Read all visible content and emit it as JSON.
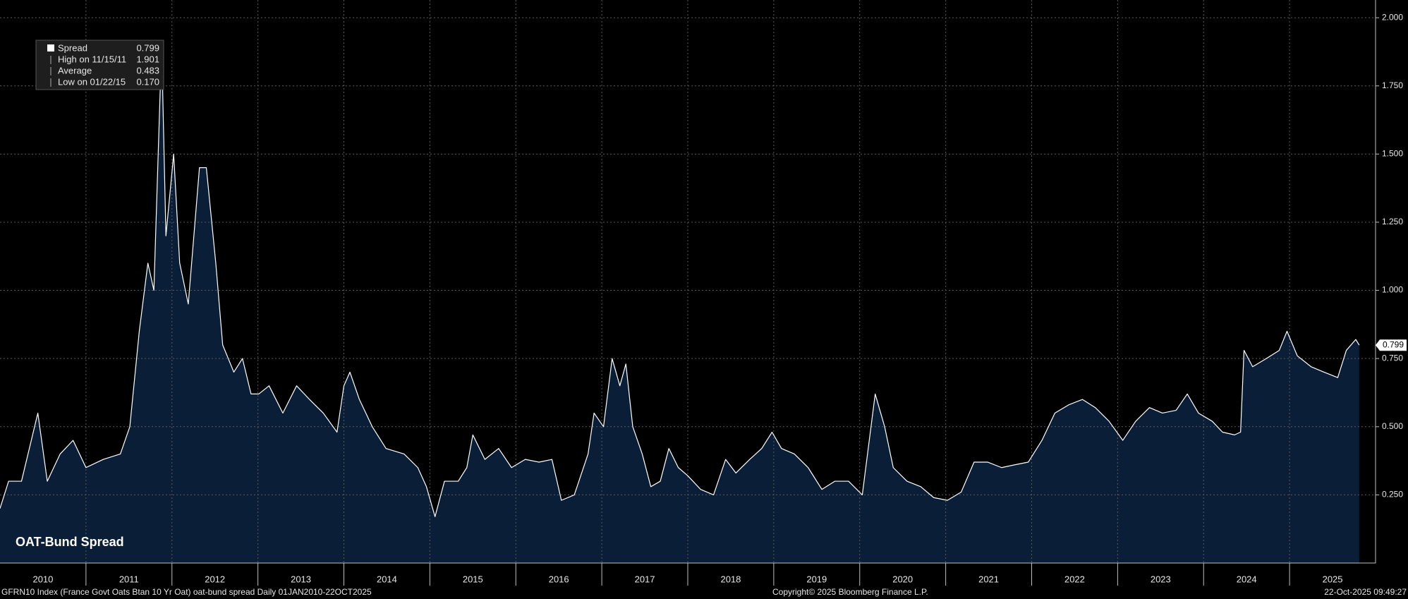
{
  "chart_data": {
    "type": "area",
    "title": "OAT-Bund Spread",
    "x": [
      2010.0,
      2010.1,
      2010.25,
      2010.44,
      2010.55,
      2010.7,
      2010.85,
      2011.0,
      2011.2,
      2011.4,
      2011.51,
      2011.62,
      2011.72,
      2011.79,
      2011.88,
      2011.93,
      2012.02,
      2012.09,
      2012.19,
      2012.32,
      2012.4,
      2012.51,
      2012.59,
      2012.72,
      2012.82,
      2012.92,
      2013.01,
      2013.13,
      2013.29,
      2013.45,
      2013.6,
      2013.76,
      2013.92,
      2014.0,
      2014.07,
      2014.18,
      2014.33,
      2014.49,
      2014.7,
      2014.86,
      2014.96,
      2015.06,
      2015.17,
      2015.33,
      2015.43,
      2015.5,
      2015.64,
      2015.8,
      2015.95,
      2016.11,
      2016.27,
      2016.42,
      2016.53,
      2016.68,
      2016.84,
      2016.91,
      2017.02,
      2017.12,
      2017.21,
      2017.28,
      2017.36,
      2017.47,
      2017.57,
      2017.68,
      2017.78,
      2017.89,
      2018.0,
      2018.15,
      2018.3,
      2018.44,
      2018.56,
      2018.72,
      2018.86,
      2018.98,
      2019.09,
      2019.24,
      2019.4,
      2019.56,
      2019.71,
      2019.87,
      2020.03,
      2020.18,
      2020.29,
      2020.39,
      2020.55,
      2020.71,
      2020.86,
      2021.02,
      2021.18,
      2021.33,
      2021.49,
      2021.65,
      2021.8,
      2021.96,
      2022.12,
      2022.27,
      2022.43,
      2022.59,
      2022.74,
      2022.9,
      2023.06,
      2023.21,
      2023.37,
      2023.52,
      2023.68,
      2023.81,
      2023.94,
      2024.1,
      2024.22,
      2024.36,
      2024.43,
      2024.47,
      2024.57,
      2024.73,
      2024.88,
      2024.97,
      2025.09,
      2025.25,
      2025.4,
      2025.56,
      2025.66,
      2025.77,
      2025.81
    ],
    "series": [
      {
        "name": "Spread",
        "color": "#ffffff",
        "fill": "#0a1e38",
        "values": [
          0.2,
          0.3,
          0.3,
          0.55,
          0.3,
          0.4,
          0.45,
          0.35,
          0.38,
          0.4,
          0.5,
          0.85,
          1.1,
          1.0,
          1.901,
          1.2,
          1.5,
          1.1,
          0.95,
          1.45,
          1.45,
          1.1,
          0.8,
          0.7,
          0.75,
          0.62,
          0.62,
          0.65,
          0.55,
          0.65,
          0.6,
          0.55,
          0.48,
          0.65,
          0.7,
          0.6,
          0.5,
          0.42,
          0.4,
          0.35,
          0.28,
          0.17,
          0.3,
          0.3,
          0.35,
          0.47,
          0.38,
          0.42,
          0.35,
          0.38,
          0.37,
          0.38,
          0.23,
          0.25,
          0.4,
          0.55,
          0.5,
          0.75,
          0.65,
          0.73,
          0.5,
          0.4,
          0.28,
          0.3,
          0.42,
          0.35,
          0.32,
          0.27,
          0.25,
          0.38,
          0.33,
          0.38,
          0.42,
          0.48,
          0.42,
          0.4,
          0.35,
          0.27,
          0.3,
          0.3,
          0.25,
          0.62,
          0.5,
          0.35,
          0.3,
          0.28,
          0.24,
          0.23,
          0.26,
          0.37,
          0.37,
          0.35,
          0.36,
          0.37,
          0.45,
          0.55,
          0.58,
          0.6,
          0.57,
          0.52,
          0.45,
          0.52,
          0.57,
          0.55,
          0.56,
          0.62,
          0.55,
          0.52,
          0.48,
          0.47,
          0.48,
          0.78,
          0.72,
          0.75,
          0.78,
          0.85,
          0.76,
          0.72,
          0.7,
          0.68,
          0.78,
          0.82,
          0.799
        ]
      }
    ],
    "xlim": [
      2010,
      2026
    ],
    "xticks": [
      2010,
      2011,
      2012,
      2013,
      2014,
      2015,
      2016,
      2017,
      2018,
      2019,
      2020,
      2021,
      2022,
      2023,
      2024,
      2025
    ],
    "ylim": [
      0,
      2.065
    ],
    "yticks": [
      {
        "value": 0.25,
        "label": "0.250"
      },
      {
        "value": 0.5,
        "label": "0.500"
      },
      {
        "value": 0.75,
        "label": "0.750"
      },
      {
        "value": 1,
        "label": "1.000"
      },
      {
        "value": 1.25,
        "label": "1.250"
      },
      {
        "value": 1.5,
        "label": "1.500"
      },
      {
        "value": 1.75,
        "label": "1.750"
      },
      {
        "value": 2,
        "label": "2.000"
      }
    ],
    "grid": true,
    "legend_stats": [
      {
        "name": "High on 11/15/11",
        "value": 1.901
      },
      {
        "name": "Average",
        "value": 0.483
      },
      {
        "name": "Low on 01/22/15",
        "value": 0.17,
        "value_label": "0.170"
      }
    ],
    "footer": {
      "source": "GFRN10 Index (France Govt Oats Btan 10 Yr Oat) oat-bund spread Daily 01JAN2010-22OCT2025",
      "copyright": "Copyright© 2025 Bloomberg Finance L.P.",
      "timestamp": "22-Oct-2025 09:49:27"
    }
  }
}
